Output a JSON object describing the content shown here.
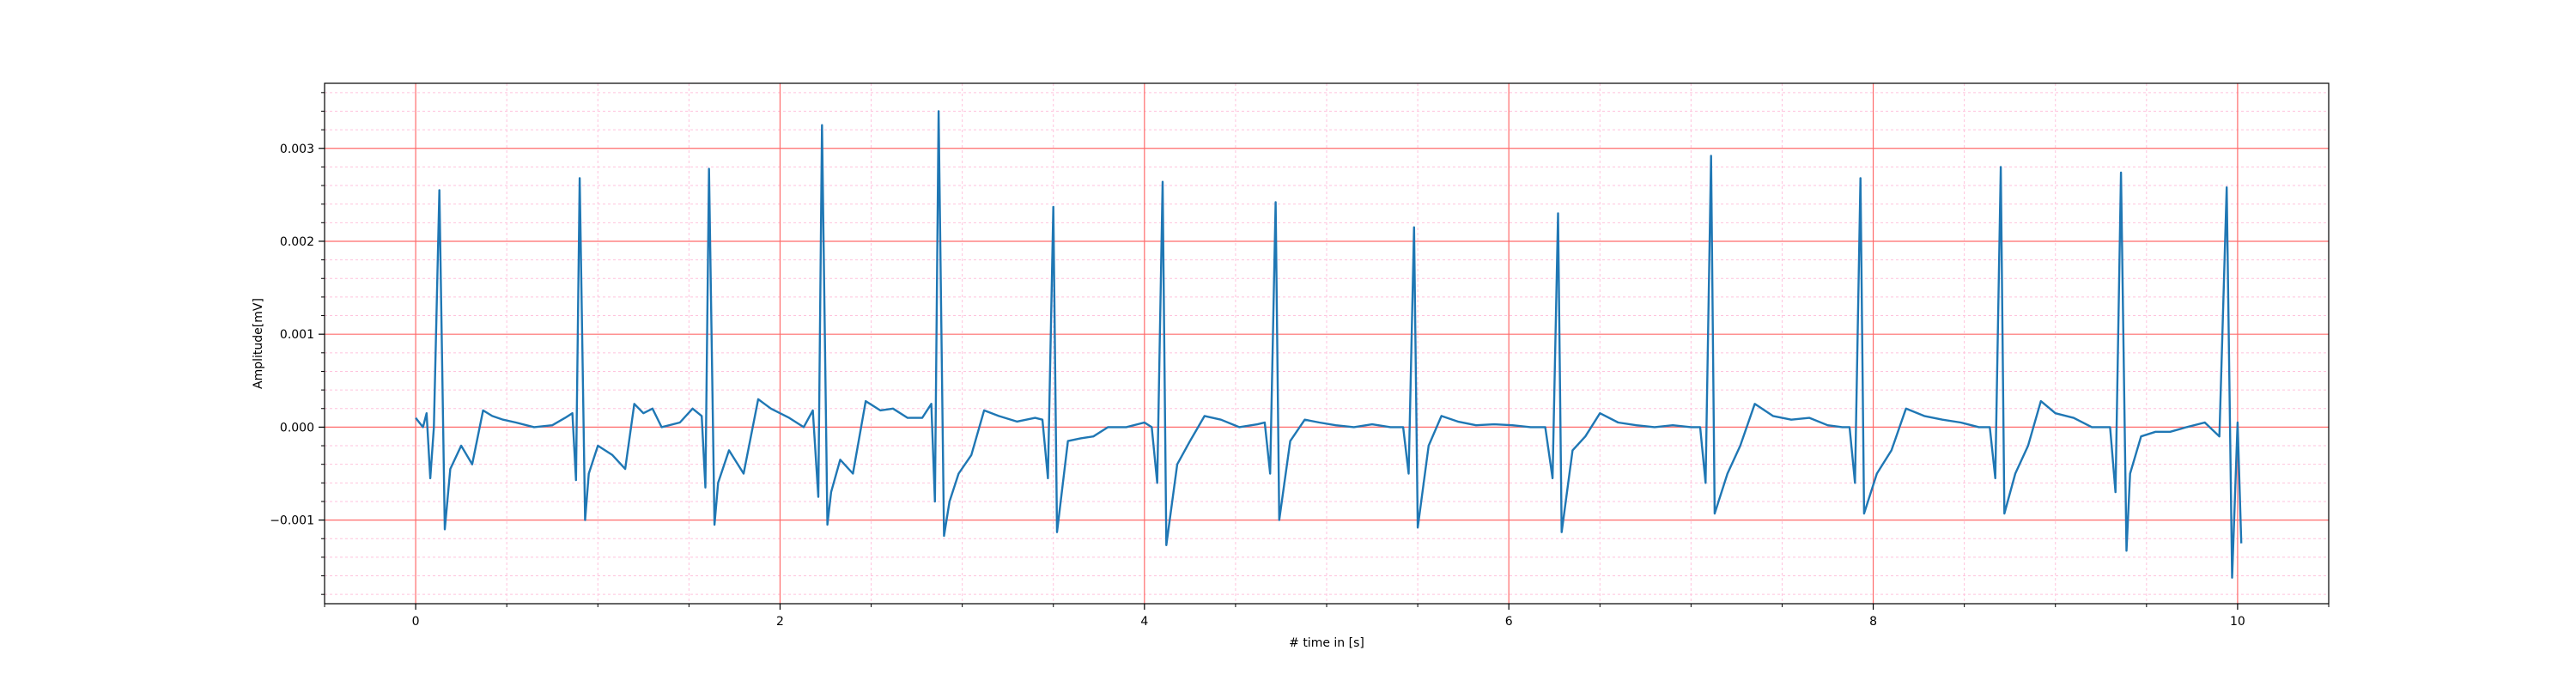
{
  "chart_data": {
    "type": "line",
    "title": "",
    "xlabel": "# time in [s]",
    "ylabel": "Amplitude[mV]",
    "xlim": [
      -0.5,
      10.5
    ],
    "ylim": [
      -0.0019,
      0.0037
    ],
    "grid": true,
    "x_ticks": [
      0,
      2,
      4,
      6,
      8,
      10
    ],
    "x_tick_labels": [
      "0",
      "2",
      "4",
      "6",
      "8",
      "10"
    ],
    "y_ticks": [
      -0.001,
      0.0,
      0.001,
      0.002,
      0.003
    ],
    "y_tick_labels": [
      "−0.001",
      "0.000",
      "0.001",
      "0.002",
      "0.003"
    ],
    "colors": {
      "line": "#1f77b4",
      "major_grid": "#ff6b6b",
      "minor_grid": "#ffc2dc"
    },
    "beat_times": [
      0.13,
      0.9,
      1.61,
      2.23,
      2.87,
      3.47,
      4.07,
      4.69,
      5.45,
      6.24,
      7.08,
      7.9,
      8.67,
      9.36,
      9.97
    ],
    "beat_peaks": [
      0.00255,
      0.00268,
      0.00278,
      0.00325,
      0.0034,
      0.00237,
      0.00264,
      0.00242,
      0.00215,
      0.0023,
      0.00292,
      0.00268,
      0.0028,
      0.00274,
      0.00258
    ],
    "beat_troughs": [
      -0.0011,
      -0.001,
      -0.00105,
      -0.00105,
      -0.00117,
      -0.00113,
      -0.00127,
      -0.001,
      -0.00108,
      -0.00113,
      -0.00093,
      -0.00093,
      -0.00093,
      -0.00133,
      -0.00162
    ],
    "series": [
      {
        "x": [
          0.0,
          0.02,
          0.04,
          0.06,
          0.08,
          0.1,
          0.13,
          0.16,
          0.19,
          0.25,
          0.31,
          0.37,
          0.42,
          0.48,
          0.55,
          0.65,
          0.75,
          0.82,
          0.86,
          0.88,
          0.9,
          0.93,
          0.95,
          1.0,
          1.08,
          1.15,
          1.2,
          1.25,
          1.3,
          1.35,
          1.45,
          1.52,
          1.57,
          1.59,
          1.61,
          1.64,
          1.66,
          1.72,
          1.8,
          1.88,
          1.95,
          2.05,
          2.13,
          2.18,
          2.21,
          2.23,
          2.26,
          2.28,
          2.33,
          2.4,
          2.47,
          2.55,
          2.62,
          2.7,
          2.78,
          2.83,
          2.85,
          2.87,
          2.9,
          2.93,
          2.98,
          3.05,
          3.12,
          3.2,
          3.3,
          3.4,
          3.44,
          3.47,
          3.5,
          3.52,
          3.58,
          3.65,
          3.72,
          3.8,
          3.9,
          4.0,
          4.04,
          4.07,
          4.1,
          4.12,
          4.18,
          4.25,
          4.33,
          4.42,
          4.52,
          4.62,
          4.66,
          4.69,
          4.72,
          4.74,
          4.8,
          4.88,
          4.96,
          5.05,
          5.15,
          5.25,
          5.35,
          5.42,
          5.45,
          5.48,
          5.5,
          5.56,
          5.63,
          5.72,
          5.82,
          5.92,
          6.02,
          6.12,
          6.2,
          6.24,
          6.27,
          6.29,
          6.35,
          6.42,
          6.5,
          6.6,
          6.7,
          6.8,
          6.9,
          7.0,
          7.05,
          7.08,
          7.11,
          7.13,
          7.2,
          7.27,
          7.35,
          7.45,
          7.55,
          7.65,
          7.75,
          7.83,
          7.87,
          7.9,
          7.93,
          7.95,
          8.02,
          8.1,
          8.18,
          8.28,
          8.38,
          8.48,
          8.58,
          8.64,
          8.67,
          8.7,
          8.72,
          8.78,
          8.85,
          8.92,
          9.0,
          9.1,
          9.2,
          9.3,
          9.33,
          9.36,
          9.39,
          9.41,
          9.47,
          9.55,
          9.63,
          9.72,
          9.82,
          9.9,
          9.94,
          9.97,
          10.0,
          10.02
        ],
        "y": [
          0.0001,
          5e-05,
          0.0,
          0.00015,
          -0.00055,
          0.0,
          0.00255,
          -0.0011,
          -0.00045,
          -0.0002,
          -0.0004,
          0.00018,
          0.00012,
          8e-05,
          5e-05,
          0.0,
          2e-05,
          0.0001,
          0.00015,
          -0.00057,
          0.00268,
          -0.001,
          -0.0005,
          -0.0002,
          -0.0003,
          -0.00045,
          0.00025,
          0.00015,
          0.0002,
          0.0,
          5e-05,
          0.0002,
          0.00012,
          -0.00065,
          0.00278,
          -0.00105,
          -0.0006,
          -0.00025,
          -0.0005,
          0.0003,
          0.0002,
          0.0001,
          0.0,
          0.00018,
          -0.00075,
          0.00325,
          -0.00105,
          -0.0007,
          -0.00035,
          -0.0005,
          0.00028,
          0.00018,
          0.0002,
          0.0001,
          0.0001,
          0.00025,
          -0.0008,
          0.0034,
          -0.00117,
          -0.0008,
          -0.0005,
          -0.0003,
          0.00018,
          0.00012,
          6e-05,
          0.0001,
          8e-05,
          -0.00055,
          0.00237,
          -0.00113,
          -0.00015,
          -0.00012,
          -0.0001,
          0.0,
          0.0,
          5e-05,
          0.0,
          -0.0006,
          0.00264,
          -0.00127,
          -0.0004,
          -0.00015,
          0.00012,
          8e-05,
          0.0,
          3e-05,
          5e-05,
          -0.0005,
          0.00242,
          -0.001,
          -0.00015,
          8e-05,
          5e-05,
          2e-05,
          0.0,
          3e-05,
          0.0,
          0.0,
          -0.0005,
          0.00215,
          -0.00108,
          -0.0002,
          0.00012,
          6e-05,
          2e-05,
          3e-05,
          2e-05,
          0.0,
          0.0,
          -0.00055,
          0.0023,
          -0.00113,
          -0.00025,
          -0.0001,
          0.00015,
          5e-05,
          2e-05,
          0.0,
          2e-05,
          0.0,
          0.0,
          -0.0006,
          0.00292,
          -0.00093,
          -0.0005,
          -0.0002,
          0.00025,
          0.00012,
          8e-05,
          0.0001,
          2e-05,
          0.0,
          0.0,
          -0.0006,
          0.00268,
          -0.00093,
          -0.0005,
          -0.00025,
          0.0002,
          0.00012,
          8e-05,
          5e-05,
          0.0,
          0.0,
          -0.00055,
          0.0028,
          -0.00093,
          -0.0005,
          -0.0002,
          0.00028,
          0.00015,
          0.0001,
          0.0,
          0.0,
          -0.0007,
          0.00274,
          -0.00133,
          -0.0005,
          -0.0001,
          -5e-05,
          -5e-05,
          0.0,
          5e-05,
          -0.0001,
          0.00258,
          -0.00162,
          5e-05,
          -0.00125
        ]
      }
    ]
  }
}
